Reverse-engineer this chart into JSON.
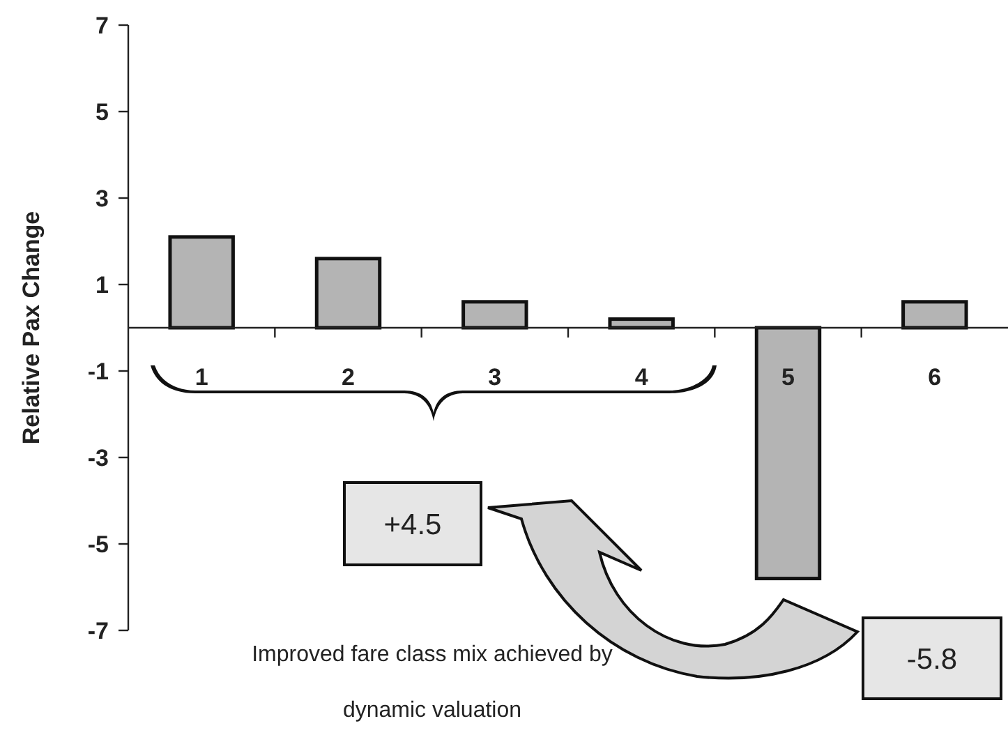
{
  "chart_data": {
    "type": "bar",
    "ylabel": "Relative Pax Change",
    "categories": [
      "1",
      "2",
      "3",
      "4",
      "5",
      "6"
    ],
    "values": [
      2.1,
      1.6,
      0.6,
      0.2,
      -5.8,
      0.6
    ],
    "color": "#b4b4b4",
    "ylim": [
      -7,
      7
    ],
    "yticks": [
      -7,
      -5,
      -3,
      -1,
      1,
      3,
      5,
      7
    ],
    "annotations": [
      "+4.5",
      "-5.8",
      "Improved fare class mix achieved by dynamic valuation"
    ]
  }
}
